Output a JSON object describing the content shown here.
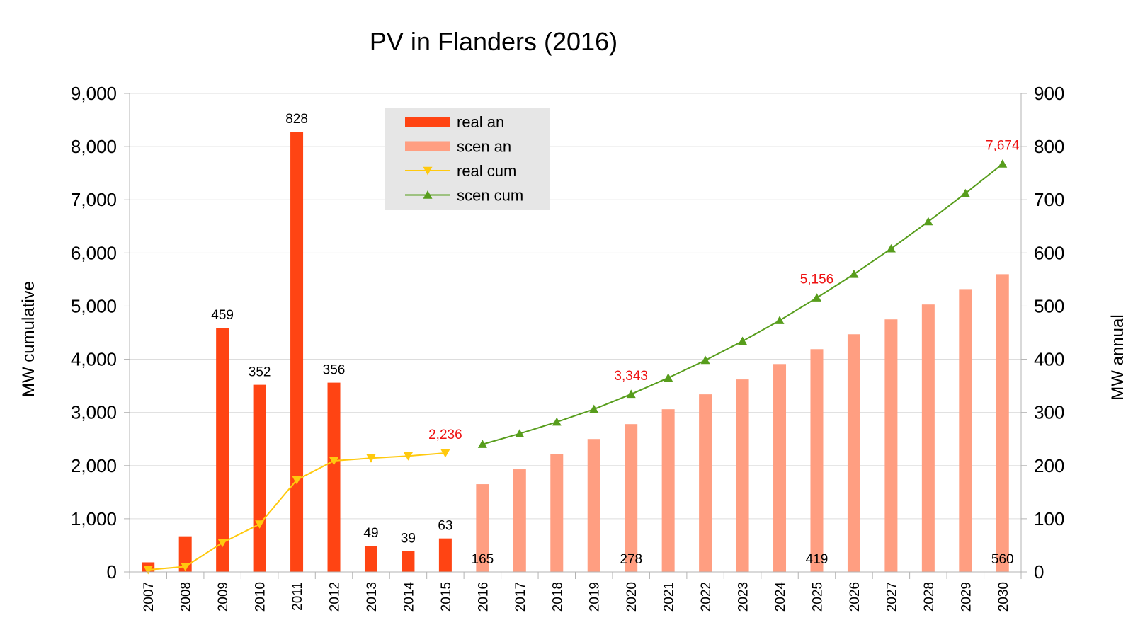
{
  "chart_data": {
    "type": "bar",
    "title": "PV in Flanders (2016)",
    "ylabel_left": "MW cumulative",
    "ylabel_right": "MW annual",
    "ylim_left": [
      0,
      9000
    ],
    "ylim_right": [
      0,
      900
    ],
    "yticks_left": [
      "0",
      "1,000",
      "2,000",
      "3,000",
      "4,000",
      "5,000",
      "6,000",
      "7,000",
      "8,000",
      "9,000"
    ],
    "yticks_right": [
      "0",
      "100",
      "200",
      "300",
      "400",
      "500",
      "600",
      "700",
      "800",
      "900"
    ],
    "grid": true,
    "legend_position": "top-center",
    "categories": [
      "2007",
      "2008",
      "2009",
      "2010",
      "2011",
      "2012",
      "2013",
      "2014",
      "2015",
      "2016",
      "2017",
      "2018",
      "2019",
      "2020",
      "2021",
      "2022",
      "2023",
      "2024",
      "2025",
      "2026",
      "2027",
      "2028",
      "2029",
      "2030"
    ],
    "series": [
      {
        "name": "real an",
        "type": "bar",
        "axis": "right",
        "color": "#ff4413",
        "values": [
          18,
          67,
          459,
          352,
          828,
          356,
          49,
          39,
          63,
          null,
          null,
          null,
          null,
          null,
          null,
          null,
          null,
          null,
          null,
          null,
          null,
          null,
          null,
          null
        ],
        "data_labels": [
          "",
          "",
          "459",
          "352",
          "828",
          "356",
          "49",
          "39",
          "63",
          "",
          "",
          "",
          "",
          "",
          "",
          "",
          "",
          "",
          "",
          "",
          "",
          "",
          "",
          ""
        ]
      },
      {
        "name": "scen an",
        "type": "bar",
        "axis": "right",
        "color": "#ff9e81",
        "values": [
          null,
          null,
          null,
          null,
          null,
          null,
          null,
          null,
          null,
          165,
          193,
          221,
          250,
          278,
          306,
          334,
          362,
          391,
          419,
          447,
          475,
          503,
          532,
          560
        ],
        "data_labels": [
          "",
          "",
          "",
          "",
          "",
          "",
          "",
          "",
          "",
          "165",
          "",
          "",
          "",
          "278",
          "",
          "",
          "",
          "",
          "419",
          "",
          "",
          "",
          "",
          "560"
        ]
      },
      {
        "name": "real cum",
        "type": "line",
        "axis": "left",
        "color": "#ffc90e",
        "marker": "triangle-down",
        "values": [
          40,
          100,
          550,
          900,
          1730,
          2090,
          2140,
          2180,
          2236,
          null,
          null,
          null,
          null,
          null,
          null,
          null,
          null,
          null,
          null,
          null,
          null,
          null,
          null,
          null
        ],
        "data_labels": [
          "",
          "",
          "",
          "",
          "",
          "",
          "",
          "",
          "2,236",
          "",
          "",
          "",
          "",
          "",
          "",
          "",
          "",
          "",
          "",
          "",
          "",
          "",
          "",
          ""
        ]
      },
      {
        "name": "scen cum",
        "type": "line",
        "axis": "left",
        "color": "#579d1c",
        "marker": "triangle-up",
        "values": [
          null,
          null,
          null,
          null,
          null,
          null,
          null,
          null,
          null,
          2400,
          2600,
          2820,
          3060,
          3343,
          3650,
          3980,
          4340,
          4730,
          5156,
          5600,
          6080,
          6590,
          7120,
          7674
        ],
        "data_labels": [
          "",
          "",
          "",
          "",
          "",
          "",
          "",
          "",
          "",
          "",
          "",
          "",
          "",
          "3,343",
          "",
          "",
          "",
          "",
          "5,156",
          "",
          "",
          "",
          "",
          "7,674"
        ]
      }
    ]
  }
}
